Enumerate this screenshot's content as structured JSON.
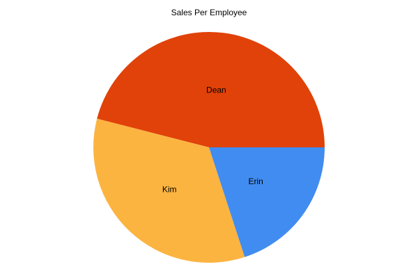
{
  "chart_data": {
    "type": "pie",
    "title": "Sales Per Employee",
    "categories": [
      "Dean",
      "Erin",
      "Kim"
    ],
    "values": [
      46,
      20,
      34
    ],
    "colors": [
      "#E04209",
      "#418CF0",
      "#FCB441"
    ],
    "start_angle": "3 o'clock",
    "direction": "Dean counter-clockwise, Erin clockwise from 3 o'clock",
    "legend": "none"
  }
}
